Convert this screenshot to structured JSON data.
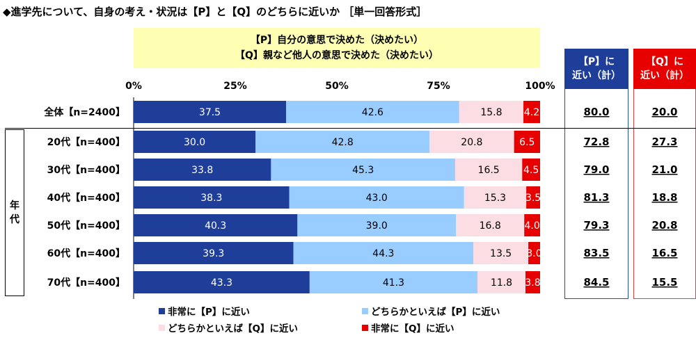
{
  "title": "◆進学先について、自身の考え・状況は【P】と【Q】のどちらに近いか ［単一回答形式］",
  "question": {
    "p_text": "【P】自分の意思で決めた（決めたい）",
    "q_text": "【Q】親など他人の意思で決めた（決めたい）"
  },
  "p_header": {
    "line1": "【P】に",
    "line2": "近い（計）"
  },
  "q_header": {
    "line1": "【Q】に",
    "line2": "近い（計）"
  },
  "group_label": {
    "char1": "年",
    "char2": "代"
  },
  "colors": {
    "s1": "#1f3e99",
    "s2": "#99ccff",
    "s3": "#fbdde3",
    "s4": "#e60000",
    "p_box": "#1e4fa0",
    "q_box": "#e04040"
  },
  "chart_data": {
    "type": "bar",
    "orientation": "horizontal",
    "stacked": true,
    "xlim": [
      0,
      100
    ],
    "x_ticks": [
      "0%",
      "25%",
      "50%",
      "75%",
      "100%"
    ],
    "categories": [
      "全体【n=2400】",
      "20代【n=400】",
      "30代【n=400】",
      "40代【n=400】",
      "50代【n=400】",
      "60代【n=400】",
      "70代【n=400】"
    ],
    "series": [
      {
        "name": "非常に【P】に近い",
        "values": [
          37.5,
          30.0,
          33.8,
          38.3,
          40.3,
          39.3,
          43.3
        ]
      },
      {
        "name": "どちらかといえば【P】に近い",
        "values": [
          42.6,
          42.8,
          45.3,
          43.0,
          39.0,
          44.3,
          41.3
        ]
      },
      {
        "name": "どちらかといえば【Q】に近い",
        "values": [
          15.8,
          20.8,
          16.5,
          15.3,
          16.8,
          13.5,
          11.8
        ]
      },
      {
        "name": "非常に【Q】に近い",
        "values": [
          4.2,
          6.5,
          4.5,
          3.5,
          4.0,
          3.0,
          3.8
        ]
      }
    ],
    "p_total": [
      "80.0",
      "72.8",
      "79.0",
      "81.3",
      "79.3",
      "83.5",
      "84.5"
    ],
    "q_total": [
      "20.0",
      "27.3",
      "21.0",
      "18.8",
      "20.8",
      "16.5",
      "15.5"
    ]
  }
}
